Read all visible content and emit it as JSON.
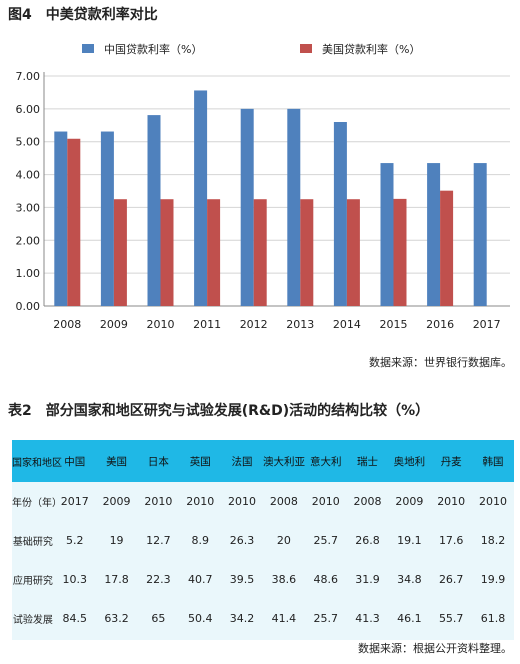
{
  "figure": {
    "title": "图4　中美贷款利率对比",
    "source": "数据来源：世界银行数据库。"
  },
  "chart_data": {
    "type": "bar",
    "title": "图4　中美贷款利率对比",
    "categories": [
      "2008",
      "2009",
      "2010",
      "2011",
      "2012",
      "2013",
      "2014",
      "2015",
      "2016",
      "2017"
    ],
    "series": [
      {
        "name": "中国贷款利率（%）",
        "color": "#4f81bd",
        "values": [
          5.31,
          5.31,
          5.81,
          6.56,
          6.0,
          6.0,
          5.6,
          4.35,
          4.35,
          4.35
        ]
      },
      {
        "name": "美国贷款利率（%）",
        "color": "#c0504d",
        "values": [
          5.09,
          3.25,
          3.25,
          3.25,
          3.25,
          3.25,
          3.25,
          3.26,
          3.51,
          null
        ]
      }
    ],
    "yticks": [
      "0.00",
      "1.00",
      "2.00",
      "3.00",
      "4.00",
      "5.00",
      "6.00",
      "7.00"
    ],
    "ylim": [
      0,
      7
    ],
    "grid": true,
    "legend_position": "top"
  },
  "table": {
    "title": "表2　部分国家和地区研究与试验发展(R&D)活动的结构比较（%）",
    "header": [
      "国家和地区",
      "中国",
      "美国",
      "日本",
      "英国",
      "法国",
      "澳大利亚",
      "意大利",
      "瑞士",
      "奥地利",
      "丹麦",
      "韩国"
    ],
    "rows": [
      [
        "年份（年）",
        "2017",
        "2009",
        "2010",
        "2010",
        "2010",
        "2008",
        "2010",
        "2008",
        "2009",
        "2010",
        "2010"
      ],
      [
        "基础研究",
        "5.2",
        "19",
        "12.7",
        "8.9",
        "26.3",
        "20",
        "25.7",
        "26.8",
        "19.1",
        "17.6",
        "18.2"
      ],
      [
        "应用研究",
        "10.3",
        "17.8",
        "22.3",
        "40.7",
        "39.5",
        "38.6",
        "48.6",
        "31.9",
        "34.8",
        "26.7",
        "19.9"
      ],
      [
        "试验发展",
        "84.5",
        "63.2",
        "65",
        "50.4",
        "34.2",
        "41.4",
        "25.7",
        "41.3",
        "46.1",
        "55.7",
        "61.8"
      ]
    ],
    "source": "数据来源：根据公开资料整理。"
  }
}
